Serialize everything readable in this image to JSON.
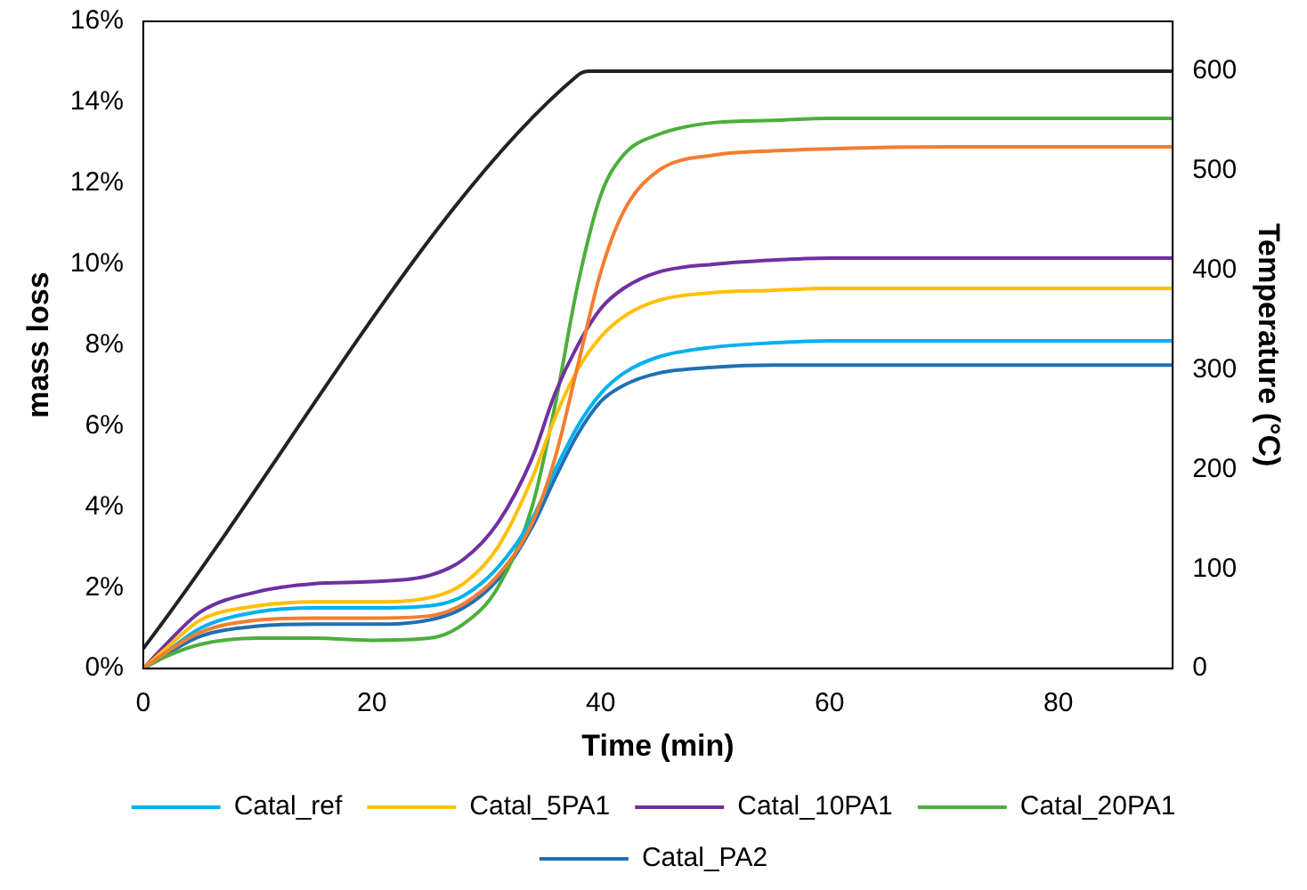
{
  "chart_data": {
    "type": "line",
    "xlabel": "Time (min)",
    "ylabel": "mass loss",
    "y2label": "Temperature (°C)",
    "x": [
      0,
      2,
      5,
      10,
      15,
      20,
      25,
      28,
      31,
      34,
      36,
      38,
      40,
      42,
      45,
      50,
      55,
      60,
      70,
      80,
      90
    ],
    "xlim": [
      0,
      90
    ],
    "xticks": [
      0,
      20,
      40,
      60,
      80
    ],
    "ylim": [
      0,
      16
    ],
    "yticks": [
      {
        "value": 0,
        "label": "0%"
      },
      {
        "value": 2,
        "label": "2%"
      },
      {
        "value": 4,
        "label": "4%"
      },
      {
        "value": 6,
        "label": "6%"
      },
      {
        "value": 8,
        "label": "8%"
      },
      {
        "value": 10,
        "label": "10%"
      },
      {
        "value": 12,
        "label": "12%"
      },
      {
        "value": 14,
        "label": "14%"
      },
      {
        "value": 16,
        "label": "16%"
      }
    ],
    "y2lim": [
      0,
      650
    ],
    "y2ticks": [
      0,
      100,
      200,
      300,
      400,
      500,
      600
    ],
    "grid": false,
    "legend": "bottom",
    "marker": "none",
    "line_style": "solid",
    "series": [
      {
        "color": "#f47d2f",
        "values": [
          0,
          0.4,
          0.9,
          1.2,
          1.25,
          1.25,
          1.3,
          1.6,
          2.3,
          3.6,
          5.2,
          7.5,
          9.8,
          11.3,
          12.3,
          12.7,
          12.8,
          12.85,
          12.9,
          12.9,
          12.9
        ]
      },
      {
        "name": "Catal_ref",
        "color": "#00b0f0",
        "values": [
          0,
          0.4,
          1.0,
          1.4,
          1.5,
          1.5,
          1.55,
          1.8,
          2.5,
          3.7,
          4.9,
          6.0,
          6.8,
          7.3,
          7.7,
          7.95,
          8.05,
          8.1,
          8.1,
          8.1,
          8.1
        ]
      },
      {
        "name": "Catal_5PA1",
        "color": "#ffc000",
        "values": [
          0,
          0.5,
          1.2,
          1.55,
          1.65,
          1.65,
          1.75,
          2.1,
          3.0,
          4.7,
          6.2,
          7.4,
          8.2,
          8.7,
          9.1,
          9.3,
          9.35,
          9.4,
          9.4,
          9.4,
          9.4
        ]
      },
      {
        "name": "Catal_10PA1",
        "color": "#7030a0",
        "values": [
          0,
          0.6,
          1.4,
          1.9,
          2.1,
          2.15,
          2.3,
          2.7,
          3.6,
          5.2,
          6.8,
          8.0,
          8.9,
          9.4,
          9.8,
          10.0,
          10.1,
          10.15,
          10.15,
          10.15,
          10.15
        ]
      },
      {
        "name": "Catal_20PA1",
        "color": "#4caf3c",
        "values": [
          0,
          0.3,
          0.6,
          0.75,
          0.75,
          0.7,
          0.75,
          1.1,
          2.0,
          4.0,
          6.5,
          9.5,
          11.7,
          12.7,
          13.2,
          13.5,
          13.55,
          13.6,
          13.6,
          13.6,
          13.6
        ]
      },
      {
        "name": "Catal_PA2",
        "color": "#1f6fb4",
        "values": [
          0,
          0.35,
          0.8,
          1.05,
          1.1,
          1.1,
          1.2,
          1.5,
          2.2,
          3.5,
          4.7,
          5.8,
          6.6,
          7.0,
          7.3,
          7.45,
          7.5,
          7.5,
          7.5,
          7.5,
          7.5
        ]
      },
      {
        "axis": "y2",
        "color": "#222222",
        "x": [
          0,
          38,
          39,
          90
        ],
        "values": [
          20,
          596,
          600,
          600
        ]
      }
    ]
  }
}
